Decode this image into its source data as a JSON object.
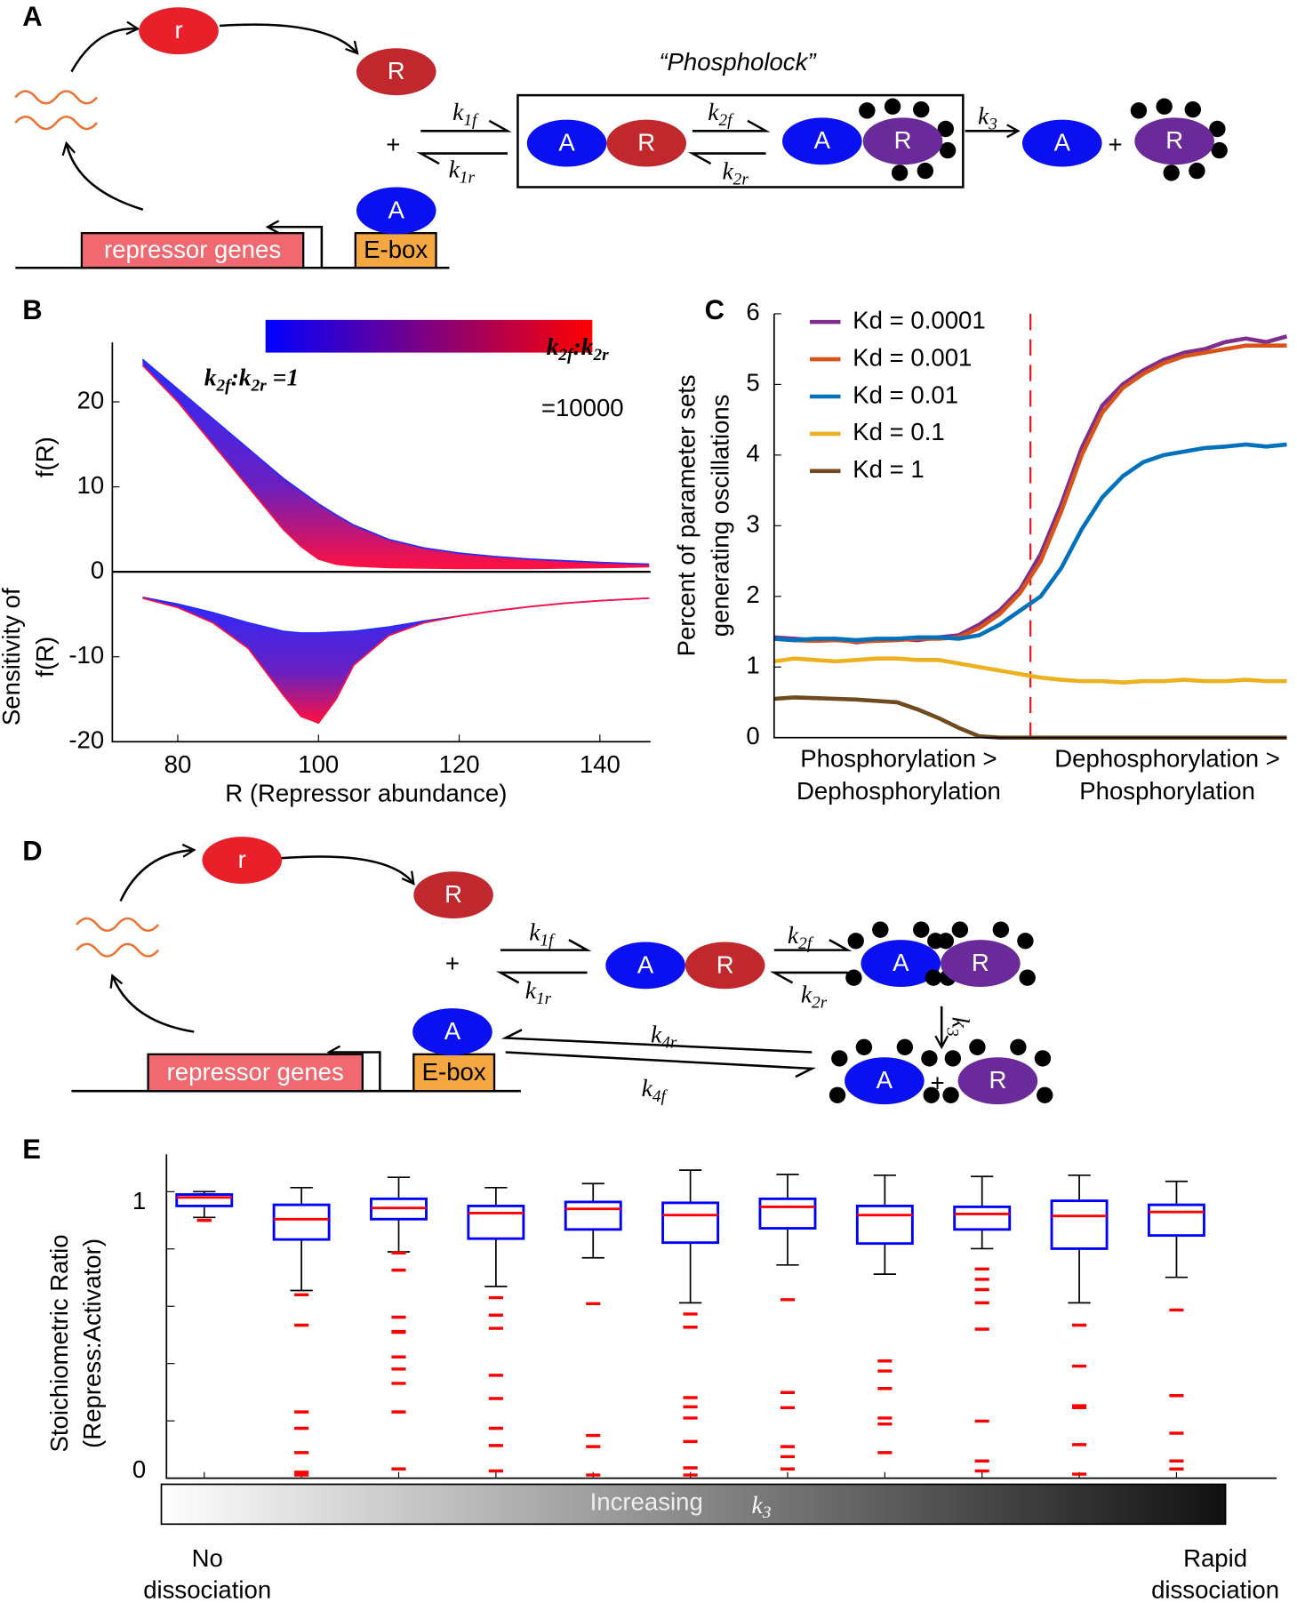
{
  "panel_labels": [
    "A",
    "B",
    "C",
    "D",
    "E"
  ],
  "diagrams": [
    {
      "title": "“Phospholock”",
      "nodes": [
        "r",
        "R",
        "A",
        "A",
        "R",
        "A",
        "R",
        "A",
        "R"
      ],
      "operators": [
        "+",
        "+"
      ],
      "gene": "repressor genes",
      "promoter": "E-box",
      "rates": [
        [
          "k",
          "1f"
        ],
        [
          "k",
          "1r"
        ],
        [
          "k",
          "2f"
        ],
        [
          "k",
          "2r"
        ],
        [
          "k",
          "3"
        ]
      ]
    },
    {
      "nodes": [
        "r",
        "R",
        "A",
        "A",
        "R",
        "A",
        "R",
        "A",
        "R"
      ],
      "operators": [
        "+",
        "+"
      ],
      "gene": "repressor genes",
      "promoter": "E-box",
      "rates": [
        [
          "k",
          "1f"
        ],
        [
          "k",
          "1r"
        ],
        [
          "k",
          "2f"
        ],
        [
          "k",
          "2r"
        ],
        [
          "k",
          "3"
        ],
        [
          "k",
          "4r"
        ],
        [
          "k",
          "4f"
        ]
      ]
    }
  ],
  "chart_data": [
    {
      "type": "area",
      "x": [
        75,
        80,
        85,
        90,
        95,
        97.5,
        100,
        102.5,
        105,
        110,
        115,
        120,
        125,
        130,
        135,
        140,
        147
      ],
      "bands": [
        {
          "ylabel": [
            "f(R)"
          ],
          "upper": [
            25,
            21.5,
            18,
            14.5,
            11,
            9.5,
            8,
            6.7,
            5.5,
            3.8,
            2.8,
            2.2,
            1.8,
            1.5,
            1.3,
            1.1,
            0.9
          ],
          "lower": [
            24.3,
            20,
            15,
            10,
            5,
            3,
            1.5,
            0.9,
            0.7,
            0.5,
            0.45,
            0.4,
            0.4,
            0.4,
            0.45,
            0.5,
            0.6
          ]
        },
        {
          "ylabel": [
            "Sensitivity of",
            "f(R)"
          ],
          "upper": [
            -3,
            -3.8,
            -4.8,
            -6,
            -7,
            -7.2,
            -7.2,
            -7.1,
            -7,
            -6.5,
            -5.8,
            -5.2,
            -4.6,
            -4.1,
            -3.7,
            -3.4,
            -3.1
          ],
          "lower": [
            -3.1,
            -4.2,
            -6,
            -9,
            -14.5,
            -17,
            -17.8,
            -15,
            -11,
            -7.5,
            -6,
            -5.2,
            -4.6,
            -4.1,
            -3.7,
            -3.4,
            -3.1
          ]
        }
      ],
      "colorbar": {
        "colors": [
          "#0000ff",
          "#ff0000"
        ],
        "low_label": [
          "k",
          "2f",
          ":k",
          "2r",
          " =1"
        ],
        "high_label": [
          "k",
          "2f",
          ":k",
          "2r"
        ],
        "high_value": "=10000"
      },
      "xlabel": "R (Repressor abundance)",
      "xlim": [
        70.7,
        147.2
      ],
      "xticks": [
        80,
        100,
        120,
        140
      ],
      "ylim": [
        -20,
        27
      ],
      "yticks": [
        -20,
        -10,
        0,
        10,
        20
      ]
    },
    {
      "type": "line",
      "x": [
        0,
        1,
        2,
        3,
        4,
        5,
        6,
        7,
        8,
        9,
        10,
        11,
        12,
        13,
        14,
        15,
        16,
        17,
        18,
        19,
        20,
        21,
        22,
        23,
        24,
        25
      ],
      "series": [
        {
          "name": "Kd = 0.0001",
          "color": "#7e2f8e",
          "values": [
            1.42,
            1.4,
            1.38,
            1.4,
            1.35,
            1.38,
            1.4,
            1.38,
            1.42,
            1.45,
            1.6,
            1.8,
            2.1,
            2.6,
            3.3,
            4.1,
            4.7,
            5.0,
            5.2,
            5.35,
            5.45,
            5.5,
            5.6,
            5.65,
            5.6,
            5.68
          ]
        },
        {
          "name": "Kd = 0.001",
          "color": "#d95319",
          "values": [
            1.4,
            1.38,
            1.37,
            1.38,
            1.36,
            1.37,
            1.38,
            1.4,
            1.4,
            1.42,
            1.55,
            1.75,
            2.05,
            2.5,
            3.2,
            4.0,
            4.6,
            4.95,
            5.15,
            5.3,
            5.4,
            5.45,
            5.5,
            5.55,
            5.55,
            5.55
          ]
        },
        {
          "name": "Kd = 0.01",
          "color": "#0072bd",
          "values": [
            1.4,
            1.38,
            1.4,
            1.4,
            1.38,
            1.4,
            1.4,
            1.42,
            1.42,
            1.4,
            1.45,
            1.6,
            1.8,
            2.0,
            2.4,
            2.95,
            3.4,
            3.7,
            3.9,
            4.0,
            4.05,
            4.1,
            4.12,
            4.15,
            4.12,
            4.15
          ]
        },
        {
          "name": "Kd = 0.1",
          "color": "#edb120",
          "values": [
            1.08,
            1.12,
            1.1,
            1.08,
            1.1,
            1.12,
            1.12,
            1.1,
            1.1,
            1.05,
            1.0,
            0.95,
            0.9,
            0.85,
            0.82,
            0.8,
            0.8,
            0.78,
            0.8,
            0.8,
            0.82,
            0.8,
            0.8,
            0.82,
            0.8,
            0.8
          ]
        },
        {
          "name": "Kd = 1",
          "color": "#6e4a1e",
          "values": [
            0.55,
            0.57,
            0.56,
            0.55,
            0.54,
            0.52,
            0.5,
            0.4,
            0.28,
            0.14,
            0.02,
            0,
            0,
            0,
            0,
            0,
            0,
            0,
            0,
            0,
            0,
            0,
            0,
            0,
            0,
            0
          ]
        }
      ],
      "ylabel": [
        "Percent of parameter sets",
        "generating oscillations"
      ],
      "x_labels": [
        [
          "Phosphorylation >",
          "Dephosphorylation"
        ],
        [
          "Dephosphorylation >",
          "Phosphorylation"
        ]
      ],
      "xlim": [
        0,
        25
      ],
      "ylim": [
        0,
        6
      ],
      "yticks": [
        0,
        1,
        2,
        3,
        4,
        5,
        6
      ],
      "legend": "upper left"
    },
    {
      "type": "box",
      "boxes": [
        {
          "whislo": 0.91,
          "q1": 0.95,
          "med": 0.98,
          "q3": 0.99,
          "whishi": 1.0,
          "fliers": [
            0.9,
            0.9
          ]
        },
        {
          "whislo": 0.655,
          "q1": 0.833,
          "med": 0.904,
          "q3": 0.954,
          "whishi": 1.014,
          "fliers": [
            0.64,
            0.534,
            0.231,
            0.174,
            0.089,
            0.021,
            0.011
          ]
        },
        {
          "whislo": 0.79,
          "q1": 0.904,
          "med": 0.943,
          "q3": 0.975,
          "whishi": 1.05,
          "fliers": [
            0.786,
            0.726,
            0.562,
            0.512,
            0.509,
            0.423,
            0.381,
            0.331,
            0.231,
            0.032
          ]
        },
        {
          "whislo": 0.669,
          "q1": 0.836,
          "med": 0.925,
          "q3": 0.95,
          "whishi": 1.014,
          "fliers": [
            0.63,
            0.569,
            0.523,
            0.359,
            0.278,
            0.174,
            0.114,
            0.025
          ]
        },
        {
          "whislo": 0.769,
          "q1": 0.868,
          "med": 0.94,
          "q3": 0.964,
          "whishi": 1.028,
          "fliers": [
            0.609,
            0.149,
            0.11,
            0.011
          ]
        },
        {
          "whislo": 0.612,
          "q1": 0.822,
          "med": 0.918,
          "q3": 0.961,
          "whishi": 1.075,
          "fliers": [
            0.573,
            0.527,
            0.281,
            0.249,
            0.21,
            0.128,
            0.036,
            0.011
          ]
        },
        {
          "whislo": 0.744,
          "q1": 0.872,
          "med": 0.947,
          "q3": 0.975,
          "whishi": 1.06,
          "fliers": [
            0.623,
            0.299,
            0.246,
            0.11,
            0.075,
            0.032
          ]
        },
        {
          "whislo": 0.712,
          "q1": 0.819,
          "med": 0.918,
          "q3": 0.95,
          "whishi": 1.057,
          "fliers": [
            0.409,
            0.374,
            0.313,
            0.21,
            0.189,
            0.089
          ]
        },
        {
          "whislo": 0.801,
          "q1": 0.868,
          "med": 0.922,
          "q3": 0.947,
          "whishi": 1.053,
          "fliers": [
            0.73,
            0.694,
            0.658,
            0.612,
            0.52,
            0.199,
            0.06,
            0.025
          ]
        },
        {
          "whislo": 0.612,
          "q1": 0.801,
          "med": 0.915,
          "q3": 0.968,
          "whishi": 1.057,
          "fliers": [
            0.534,
            0.391,
            0.253,
            0.246,
            0.117,
            0.014
          ]
        },
        {
          "whislo": 0.701,
          "q1": 0.847,
          "med": 0.929,
          "q3": 0.954,
          "whishi": 1.036,
          "fliers": [
            0.587,
            0.288,
            0.157,
            0.06,
            0.032
          ]
        }
      ],
      "ylabel": [
        "Stoichiometric Ratio",
        "(Repress:Activator)"
      ],
      "ylim": [
        0,
        1.13
      ],
      "yticks": [
        0,
        1
      ],
      "yminor_ticks": [
        0.2,
        0.4,
        0.6,
        0.8
      ],
      "gradient_label": "Increasing",
      "gradient_symbol": [
        "k",
        "3"
      ],
      "left_label": [
        "No",
        "dissociation"
      ],
      "right_label": [
        "Rapid",
        "dissociation"
      ]
    }
  ]
}
